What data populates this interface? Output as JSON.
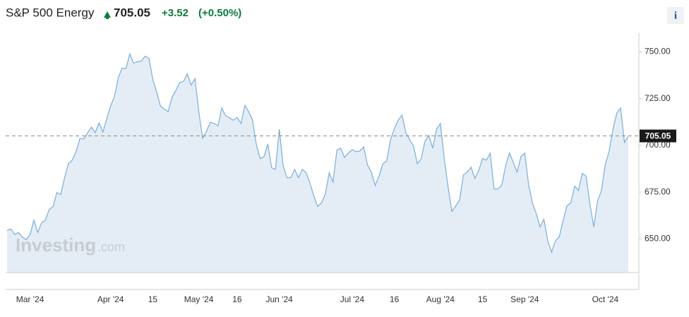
{
  "chart_data": {
    "type": "area",
    "title": "S&P 500 Energy",
    "change": "+3.52",
    "change_pct": "(+0.50%)",
    "watermark": "Investing",
    "watermark_suffix": ".com",
    "info": "i",
    "color": "#7aaed8",
    "fill": "#e4edf6",
    "ylim": [
      632,
      760
    ],
    "yticks": [
      {
        "value": 650,
        "label": "650.00"
      },
      {
        "value": 675,
        "label": "675.00"
      },
      {
        "value": 700,
        "label": "700.00"
      },
      {
        "value": 725,
        "label": "725.00"
      },
      {
        "value": 750,
        "label": "750.00"
      }
    ],
    "categories": [
      null,
      null,
      null,
      null,
      null,
      null,
      "Mar '24",
      null,
      null,
      null,
      null,
      null,
      null,
      null,
      null,
      null,
      null,
      null,
      null,
      null,
      null,
      null,
      null,
      null,
      null,
      null,
      null,
      "Apr '24",
      null,
      null,
      null,
      null,
      null,
      null,
      null,
      null,
      null,
      null,
      "15",
      null,
      null,
      null,
      null,
      null,
      null,
      null,
      null,
      null,
      null,
      null,
      "May '24",
      null,
      null,
      null,
      null,
      null,
      null,
      null,
      null,
      null,
      "16",
      null,
      null,
      null,
      null,
      null,
      null,
      null,
      null,
      null,
      null,
      "Jun '24",
      null,
      null,
      null,
      null,
      null,
      null,
      null,
      null,
      null,
      null,
      null,
      null,
      null,
      null,
      null,
      null,
      null,
      null,
      "Jul '24",
      null,
      null,
      null,
      null,
      null,
      null,
      null,
      null,
      null,
      null,
      "16",
      null,
      null,
      null,
      null,
      null,
      null,
      null,
      null,
      null,
      null,
      null,
      "Aug '24",
      null,
      null,
      null,
      null,
      null,
      null,
      null,
      null,
      null,
      null,
      "15",
      null,
      null,
      null,
      null,
      null,
      null,
      null,
      null,
      null,
      null,
      "Sep '24",
      null,
      null,
      null,
      null,
      null,
      null,
      null,
      null,
      null,
      null,
      null,
      null,
      null,
      null,
      null,
      null,
      null,
      null,
      null,
      null,
      "Oct '24",
      null,
      null,
      null,
      null,
      null,
      null
    ],
    "values": [
      654.5,
      655.3,
      652.3,
      653.4,
      651,
      649.6,
      652.3,
      660,
      653.4,
      658.6,
      660,
      665.8,
      667.3,
      674.8,
      673.7,
      682.7,
      690.2,
      692.1,
      696.6,
      703.8,
      703.4,
      706.8,
      709.8,
      706.8,
      712,
      707.1,
      714.3,
      721.1,
      726,
      736.1,
      741.4,
      741,
      748.9,
      744,
      744.7,
      745.1,
      747.7,
      746.6,
      735.3,
      728.6,
      721,
      719.5,
      718,
      725.6,
      729.3,
      733.5,
      734.2,
      738.3,
      732.3,
      735.7,
      718,
      703.8,
      707.5,
      712.4,
      711.7,
      710.5,
      720,
      715.8,
      714.7,
      713.5,
      715,
      711.7,
      721.4,
      718,
      713.5,
      700.4,
      692.9,
      694,
      700.8,
      688,
      687.2,
      708.6,
      689,
      682.7,
      682.7,
      687.2,
      682.7,
      687.2,
      685.3,
      679.7,
      672.9,
      667.3,
      669.2,
      674.1,
      685.3,
      680.5,
      697.4,
      698.5,
      693.6,
      695.9,
      697.7,
      696.6,
      697,
      699.2,
      689.5,
      685.7,
      678.6,
      683.5,
      690.2,
      691.7,
      703,
      709,
      713.5,
      716.2,
      706.8,
      703,
      699.6,
      690.2,
      692.9,
      702.3,
      705.3,
      698.5,
      708.6,
      711.7,
      692.9,
      677.8,
      664.7,
      667.7,
      670.7,
      684.2,
      685.7,
      688.3,
      682.3,
      686.5,
      692.9,
      692.1,
      695.9,
      676.7,
      676.7,
      678.6,
      689.1,
      695.9,
      691,
      685.7,
      694,
      695.9,
      678.9,
      669.2,
      663.5,
      656.4,
      660.5,
      648.9,
      642.9,
      648.9,
      651.1,
      659.8,
      667.7,
      669.2,
      678.2,
      675.9,
      685,
      683.5,
      668.4,
      656.4,
      670.3,
      675.9,
      689.8,
      696.6,
      708.6,
      717.3,
      720,
      701.5,
      705.05
    ]
  }
}
